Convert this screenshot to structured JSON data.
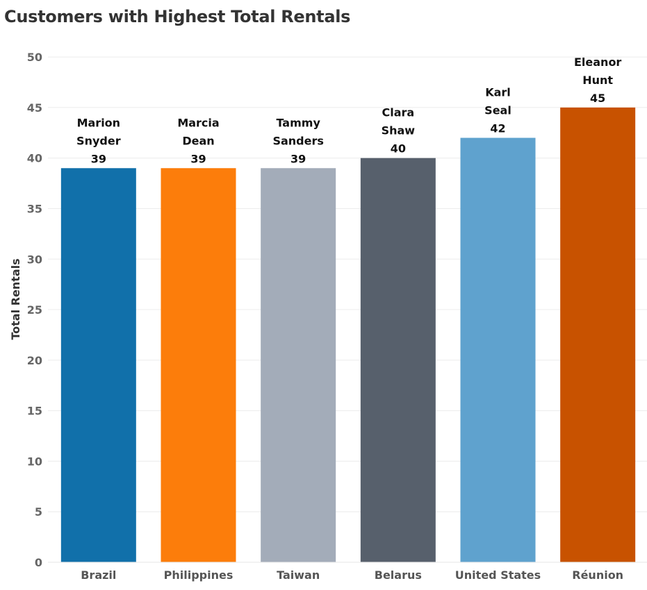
{
  "chart_data": {
    "type": "bar",
    "title": "Customers with Highest Total Rentals",
    "xlabel": "",
    "ylabel": "Total Rentals",
    "ylim": [
      0,
      52
    ],
    "yticks": [
      0,
      5,
      10,
      15,
      20,
      25,
      30,
      35,
      40,
      45,
      50
    ],
    "grid": true,
    "legend": "none",
    "categories": [
      "Brazil",
      "Philippines",
      "Taiwan",
      "Belarus",
      "United States",
      "Réunion"
    ],
    "values": [
      39,
      39,
      39,
      40,
      42,
      45
    ],
    "customers": [
      [
        "Marion",
        "Snyder"
      ],
      [
        "Marcia",
        "Dean"
      ],
      [
        "Tammy",
        "Sanders"
      ],
      [
        "Clara",
        "Shaw"
      ],
      [
        "Karl",
        "Seal"
      ],
      [
        "Eleanor",
        "Hunt"
      ]
    ],
    "colors": [
      "#1170aa",
      "#fc7d0b",
      "#a3acb9",
      "#57606c",
      "#5fa2ce",
      "#c85200"
    ]
  }
}
